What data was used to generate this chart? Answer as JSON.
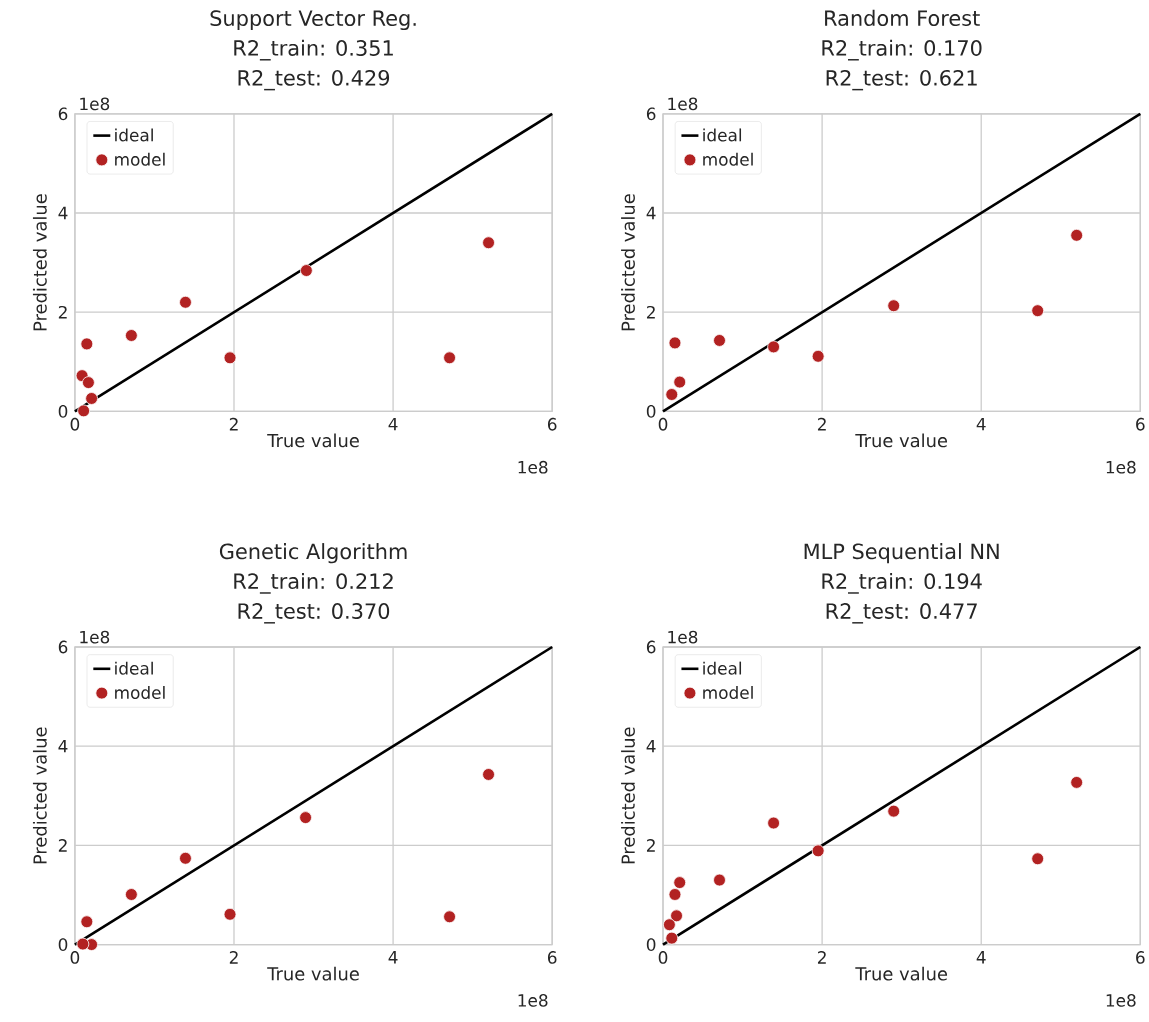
{
  "chart_data": [
    {
      "type": "scatter",
      "title": "Support Vector Reg.",
      "subtitle": "R2_train: 0.351",
      "annotations": [
        "R2_test: 0.429",
        "1e8",
        "1e8"
      ],
      "xlabel": "True value",
      "ylabel": "Predicted value",
      "xlim": [
        0,
        6
      ],
      "ylim": [
        0,
        6
      ],
      "xticks": [
        0,
        2,
        4,
        6
      ],
      "yticks": [
        0,
        2,
        4,
        6
      ],
      "grid": true,
      "legend": "top left",
      "series": [
        {
          "name": "ideal",
          "type": "line",
          "marker": "none",
          "color": "#000000",
          "x": [
            0,
            6
          ],
          "values": [
            0,
            6
          ]
        },
        {
          "name": "model",
          "marker": "circle",
          "color": "#b22222",
          "x": [
            5.2,
            2.91,
            1.39,
            0.71,
            0.15,
            1.95,
            4.71,
            0.09,
            0.17,
            0.21,
            0.11
          ],
          "values": [
            3.4,
            2.84,
            2.2,
            1.53,
            1.36,
            1.08,
            1.08,
            0.72,
            0.58,
            0.26,
            0.01
          ]
        }
      ]
    },
    {
      "type": "scatter",
      "title": "Random Forest",
      "subtitle": "R2_train: 0.170",
      "annotations": [
        "R2_test: 0.621",
        "1e8",
        "1e8"
      ],
      "xlabel": "True value",
      "ylabel": "Predicted value",
      "xlim": [
        0,
        6
      ],
      "ylim": [
        0,
        6
      ],
      "xticks": [
        0,
        2,
        4,
        6
      ],
      "yticks": [
        0,
        2,
        4,
        6
      ],
      "grid": true,
      "legend": "top left",
      "series": [
        {
          "name": "ideal",
          "type": "line",
          "marker": "none",
          "color": "#000000",
          "x": [
            0,
            6
          ],
          "values": [
            0,
            6
          ]
        },
        {
          "name": "model",
          "marker": "circle",
          "color": "#b22222",
          "x": [
            5.2,
            2.9,
            4.71,
            1.39,
            1.95,
            0.71,
            0.15,
            0.21,
            0.11
          ],
          "values": [
            3.55,
            2.13,
            2.03,
            1.3,
            1.11,
            1.43,
            1.38,
            0.59,
            0.34
          ]
        }
      ]
    },
    {
      "type": "scatter",
      "title": "Genetic Algorithm",
      "subtitle": "R2_train: 0.212",
      "annotations": [
        "R2_test: 0.370",
        "1e8",
        "1e8"
      ],
      "xlabel": "True value",
      "ylabel": "Predicted value",
      "xlim": [
        0,
        6
      ],
      "ylim": [
        0,
        6
      ],
      "xticks": [
        0,
        2,
        4,
        6
      ],
      "yticks": [
        0,
        2,
        4,
        6
      ],
      "grid": true,
      "legend": "top left",
      "series": [
        {
          "name": "ideal",
          "type": "line",
          "marker": "none",
          "color": "#000000",
          "x": [
            0,
            6
          ],
          "values": [
            0,
            6
          ]
        },
        {
          "name": "model",
          "marker": "circle",
          "color": "#b22222",
          "x": [
            5.2,
            2.9,
            1.39,
            0.71,
            0.15,
            1.95,
            4.71,
            0.21,
            0.1
          ],
          "values": [
            3.43,
            2.56,
            1.74,
            1.01,
            0.46,
            0.61,
            0.56,
            0,
            0.01
          ]
        }
      ]
    },
    {
      "type": "scatter",
      "title": "MLP Sequential NN",
      "subtitle": "R2_train: 0.194",
      "annotations": [
        "R2_test: 0.477",
        "1e8",
        "1e8"
      ],
      "xlabel": "True value",
      "ylabel": "Predicted value",
      "xlim": [
        0,
        6
      ],
      "ylim": [
        0,
        6
      ],
      "xticks": [
        0,
        2,
        4,
        6
      ],
      "yticks": [
        0,
        2,
        4,
        6
      ],
      "grid": true,
      "legend": "top left",
      "series": [
        {
          "name": "ideal",
          "type": "line",
          "marker": "none",
          "color": "#000000",
          "x": [
            0,
            6
          ],
          "values": [
            0,
            6
          ]
        },
        {
          "name": "model",
          "marker": "circle",
          "color": "#b22222",
          "x": [
            5.2,
            2.9,
            1.39,
            1.95,
            4.71,
            0.71,
            0.21,
            0.15,
            0.17,
            0.08,
            0.11
          ],
          "values": [
            3.27,
            2.69,
            2.45,
            1.89,
            1.73,
            1.3,
            1.25,
            1.01,
            0.58,
            0.4,
            0.13
          ]
        }
      ]
    }
  ]
}
